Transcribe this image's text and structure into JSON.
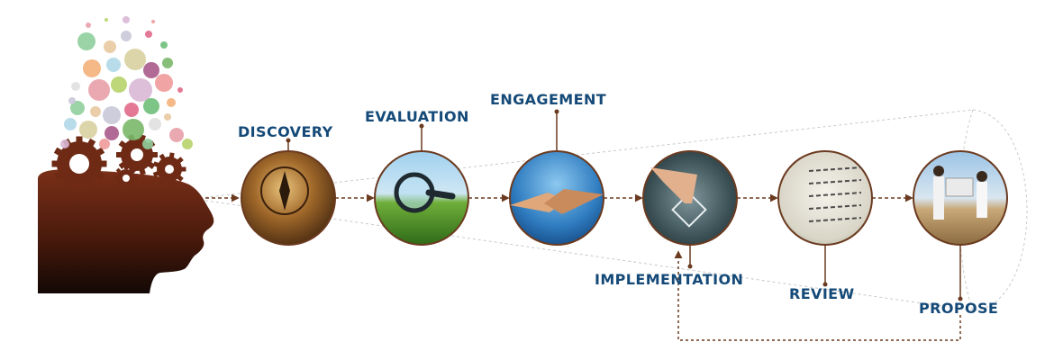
{
  "colors": {
    "label": "#154a78",
    "connector": "#6b3a1f",
    "head": "#6e2a14",
    "head_dark": "#1e0d08",
    "ring": "#6b3a1f"
  },
  "icons": {
    "head": "human-head-silhouette-icon",
    "gears": "gears-icon",
    "bubbles": "idea-bubbles-icon"
  },
  "stages": [
    {
      "label": "DISCOVERY",
      "image": "compass-photo"
    },
    {
      "label": "EVALUATION",
      "image": "magnifier-grass-photo"
    },
    {
      "label": "ENGAGEMENT",
      "image": "handshake-photo"
    },
    {
      "label": "IMPLEMENTATION",
      "image": "touchscreen-finger-photo"
    },
    {
      "label": "REVIEW",
      "image": "whiteboard-notes-photo"
    },
    {
      "label": "PROPOSE",
      "image": "business-people-blueprint-photo"
    }
  ]
}
